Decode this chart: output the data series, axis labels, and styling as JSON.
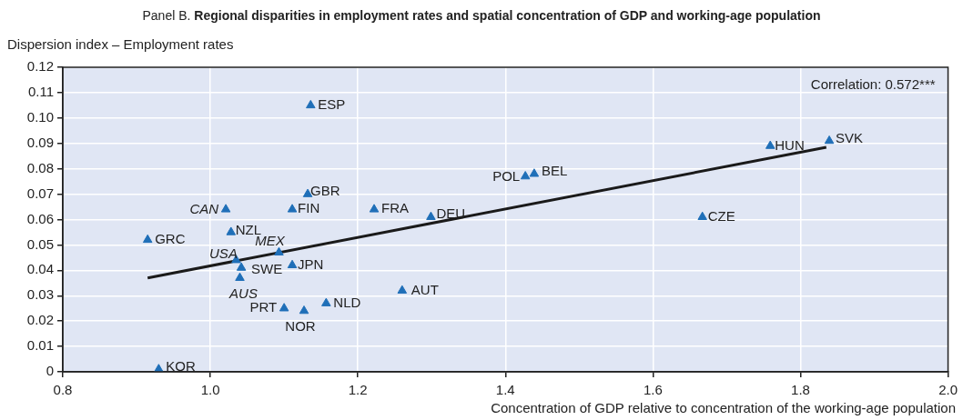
{
  "chart_data": {
    "type": "scatter",
    "title": "Panel B. Regional disparities in employment rates and spatial concentration of GDP and working-age population",
    "xlabel": "Concentration of GDP relative to concentration of the working-age population",
    "ylabel": "Dispersion index – Employment rates",
    "series": [
      {
        "type": "scatter",
        "marker": "triangle",
        "color": "#1f6fb8",
        "x": [
          1.136,
          1.132,
          1.021,
          1.111,
          1.222,
          1.299,
          1.028,
          0.915,
          1.093,
          1.035,
          1.042,
          1.04,
          1.111,
          1.26,
          1.157,
          1.1,
          1.127,
          0.93,
          1.427,
          1.439,
          1.667,
          1.759,
          1.839
        ],
        "values": [
          0.105,
          0.07,
          0.064,
          0.064,
          0.064,
          0.061,
          0.055,
          0.052,
          0.047,
          0.044,
          0.041,
          0.037,
          0.042,
          0.032,
          0.027,
          0.025,
          0.024,
          0.001,
          0.077,
          0.078,
          0.061,
          0.089,
          0.091
        ]
      },
      {
        "type": "line",
        "marker": "none",
        "color": "#1a1a1a",
        "x": [
          0.915,
          1.835
        ],
        "values": [
          0.037,
          0.0885
        ]
      }
    ],
    "annotations": [
      {
        "text": "ESP",
        "x": 1.136,
        "y": 0.105
      },
      {
        "text": "GBR",
        "x": 1.132,
        "y": 0.07
      },
      {
        "text": "CAN",
        "x": 1.021,
        "y": 0.064
      },
      {
        "text": "FIN",
        "x": 1.111,
        "y": 0.064
      },
      {
        "text": "FRA",
        "x": 1.222,
        "y": 0.064
      },
      {
        "text": "DEU",
        "x": 1.299,
        "y": 0.061
      },
      {
        "text": "NZL",
        "x": 1.028,
        "y": 0.055
      },
      {
        "text": "GRC",
        "x": 0.915,
        "y": 0.052
      },
      {
        "text": "MEX",
        "x": 1.093,
        "y": 0.047
      },
      {
        "text": "USA",
        "x": 1.035,
        "y": 0.044
      },
      {
        "text": "SWE",
        "x": 1.042,
        "y": 0.041
      },
      {
        "text": "AUS",
        "x": 1.04,
        "y": 0.037
      },
      {
        "text": "JPN",
        "x": 1.111,
        "y": 0.042
      },
      {
        "text": "AUT",
        "x": 1.26,
        "y": 0.032
      },
      {
        "text": "NLD",
        "x": 1.157,
        "y": 0.027
      },
      {
        "text": "PRT",
        "x": 1.1,
        "y": 0.025
      },
      {
        "text": "NOR",
        "x": 1.127,
        "y": 0.024
      },
      {
        "text": "KOR",
        "x": 0.93,
        "y": 0.001
      },
      {
        "text": "POL",
        "x": 1.427,
        "y": 0.077
      },
      {
        "text": "BEL",
        "x": 1.439,
        "y": 0.078
      },
      {
        "text": "CZE",
        "x": 1.667,
        "y": 0.061
      },
      {
        "text": "HUN",
        "x": 1.759,
        "y": 0.089
      },
      {
        "text": "SVK",
        "x": 1.839,
        "y": 0.091
      },
      "Correlation: 0.572***"
    ],
    "xlim": [
      0.8,
      2.0
    ],
    "xticks": [
      0.8,
      {
        "value": 1.0,
        "label": "1.0"
      },
      1.2,
      1.4,
      1.6,
      1.8,
      {
        "value": 2.0,
        "label": "2.0"
      }
    ],
    "ylim": [
      0,
      0.12
    ],
    "yticks": [
      0,
      0.01,
      0.02,
      0.03,
      0.04,
      0.05,
      0.06,
      0.07,
      0.08,
      0.09,
      {
        "value": 0.1,
        "label": "0.10"
      },
      0.11,
      0.12
    ],
    "grid": true,
    "legend": false,
    "line_style": "solid"
  }
}
